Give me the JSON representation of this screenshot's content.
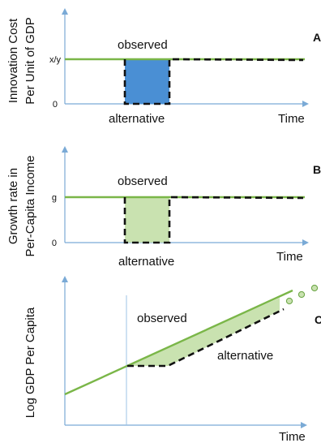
{
  "colors": {
    "axis": "#7aaad6",
    "observed_line": "#7ab648",
    "alternative_line": "#111111",
    "panel_a_fill": "#4a8fd4",
    "panel_b_fill": "#c9e2b0",
    "panel_c_fill": "#c9e2b0",
    "circle_fill": "#c9e2b0",
    "circle_stroke": "#6fa84a",
    "guide_line": "#9cc3e6"
  },
  "panels": {
    "a": {
      "letter": "A",
      "ylabel_line1": "Innovation Cost",
      "ylabel_line2": "Per Unit of GDP",
      "ytick_top": "x/y",
      "ytick_bottom": "0",
      "observed_label": "observed",
      "alternative_label": "alternative",
      "xlabel": "Time"
    },
    "b": {
      "letter": "B",
      "ylabel_line1": "Growth rate in",
      "ylabel_line2": "Per-Capita Income",
      "ytick_top": "g",
      "ytick_bottom": "0",
      "observed_label": "observed",
      "alternative_label": "alternative",
      "xlabel": "Time"
    },
    "c": {
      "letter": "C",
      "ylabel": "Log GDP Per Capita",
      "observed_label": "observed",
      "alternative_label": "alternative",
      "xlabel": "Time"
    }
  }
}
